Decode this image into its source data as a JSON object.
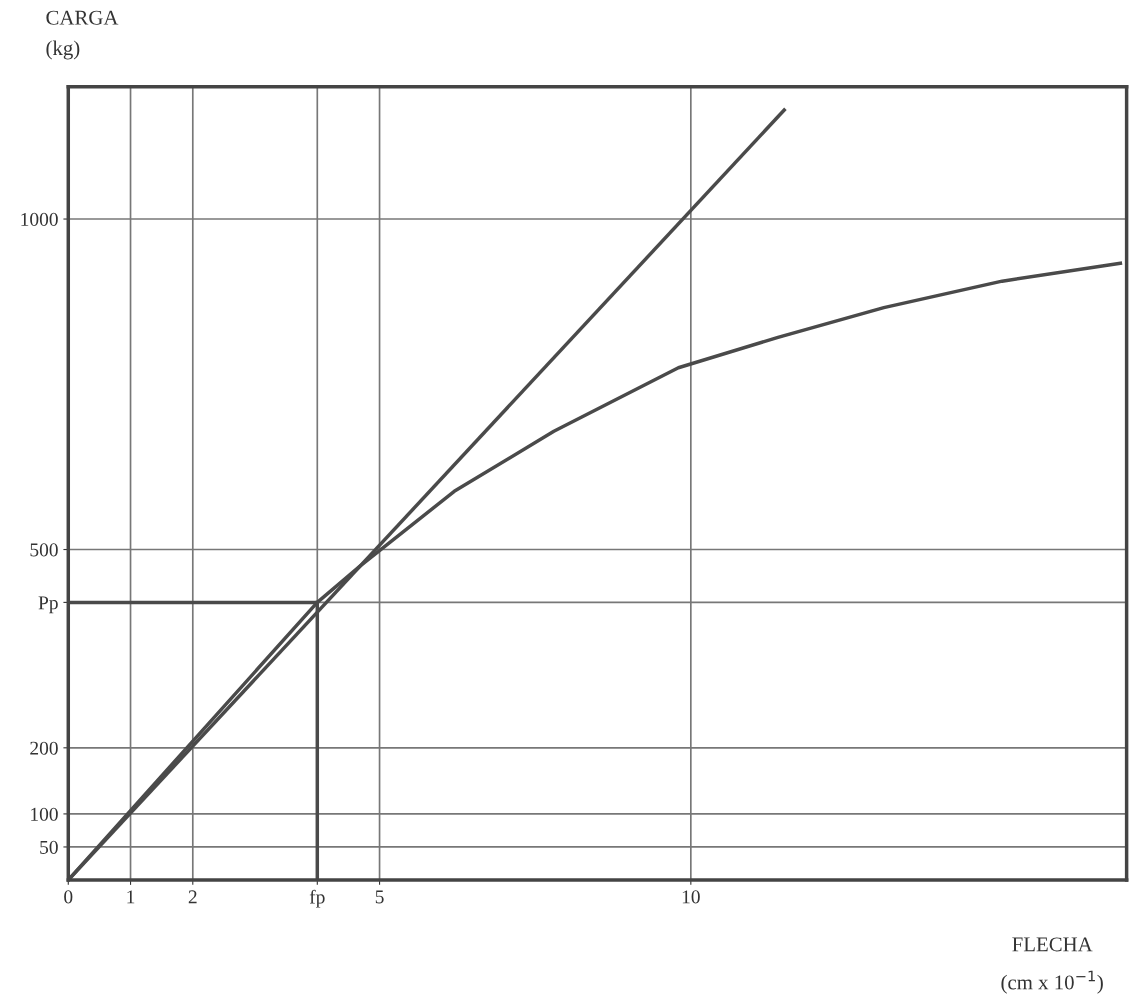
{
  "chart_data": {
    "type": "line",
    "xlabel": "FLECHA\n(cm x 10$^{−1}$)",
    "ylabel": "CARGA\n(kg)",
    "series": [
      {
        "color": "#4a4a4a",
        "x": [
          0,
          11.5
        ],
        "values": [
          0,
          1165
        ]
      },
      {
        "color": "#4a4a4a",
        "x": [
          0,
          4.0,
          4.7,
          6.2,
          7.8,
          9.8,
          11.4,
          13.1,
          15.0,
          16.9
        ],
        "values": [
          0,
          420,
          476,
          588,
          679,
          775,
          821,
          866,
          906,
          933
        ]
      }
    ],
    "xlim": [
      0,
      17
    ],
    "xticks": [
      0,
      1,
      2,
      {
        "value": 4.0,
        "label": "fp"
      },
      5,
      10
    ],
    "ylim": [
      0,
      1200
    ],
    "yticks": [
      50,
      100,
      200,
      {
        "value": 420,
        "label": "Pp"
      },
      500,
      1000
    ],
    "ref_lines": [
      {
        "axis": "x",
        "value": 4.0,
        "color": "#4a4a4a"
      },
      {
        "axis": "y",
        "value": 420,
        "color": "#4a4a4a"
      }
    ],
    "grid": true,
    "marker": "none",
    "line_style": "solid"
  }
}
